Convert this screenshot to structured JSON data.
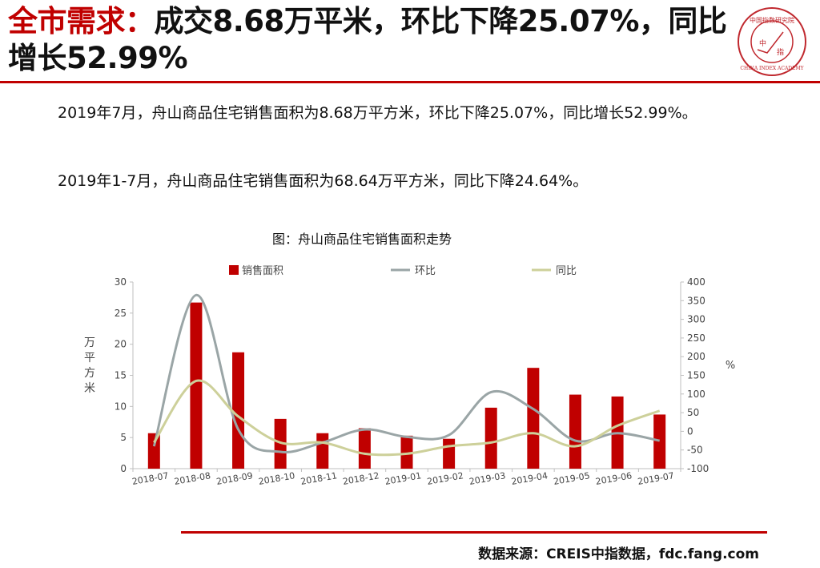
{
  "header": {
    "title_highlight": "全市需求：",
    "title_rest": "成交8.68万平米，环比下降25.07%，同比增长52.99%"
  },
  "logo": {
    "top_text": "中国指数研究院",
    "center_text_1": "中",
    "center_text_2": "指",
    "ring_text": "CHINA INDEX ACADEMY"
  },
  "body": {
    "paragraph_1": "2019年7月，舟山商品住宅销售面积为8.68万平方米，环比下降25.07%，同比增长52.99%。",
    "paragraph_2": "2019年1-7月，舟山商品住宅销售面积为68.64万平方米，同比下降24.64%。"
  },
  "source": "数据来源：CREIS中指数据，fdc.fang.com",
  "chart_data": {
    "type": "bar",
    "title": "图：舟山商品住宅销售面积走势",
    "categories": [
      "2018-07",
      "2018-08",
      "2018-09",
      "2018-10",
      "2018-11",
      "2018-12",
      "2019-01",
      "2019-02",
      "2019-03",
      "2019-04",
      "2019-05",
      "2019-06",
      "2019-07"
    ],
    "ylabel_left": "万平方米",
    "ylabel_right": "%",
    "ylim_left": [
      0,
      30
    ],
    "yticks_left": [
      0,
      5,
      10,
      15,
      20,
      25,
      30
    ],
    "ylim_right": [
      -100,
      400
    ],
    "yticks_right": [
      -100,
      -50,
      0,
      50,
      100,
      150,
      200,
      250,
      300,
      350,
      400
    ],
    "legend_position": "top",
    "grid": false,
    "series": [
      {
        "name": "销售面积",
        "type": "bar",
        "axis": "left",
        "color": "#c00000",
        "values": [
          5.7,
          26.7,
          18.7,
          8.0,
          5.7,
          6.5,
          5.3,
          4.8,
          9.8,
          16.2,
          11.9,
          11.6,
          8.7
        ]
      },
      {
        "name": "环比",
        "type": "line",
        "axis": "right",
        "color": "#9aa5a6",
        "values": [
          -40,
          365,
          5,
          -55,
          -30,
          5,
          -15,
          -10,
          105,
          60,
          -25,
          -5,
          -25
        ]
      },
      {
        "name": "同比",
        "type": "line",
        "axis": "right",
        "color": "#cdd09a",
        "values": [
          -30,
          135,
          40,
          -30,
          -30,
          -60,
          -60,
          -40,
          -30,
          -5,
          -40,
          15,
          55
        ]
      }
    ]
  }
}
